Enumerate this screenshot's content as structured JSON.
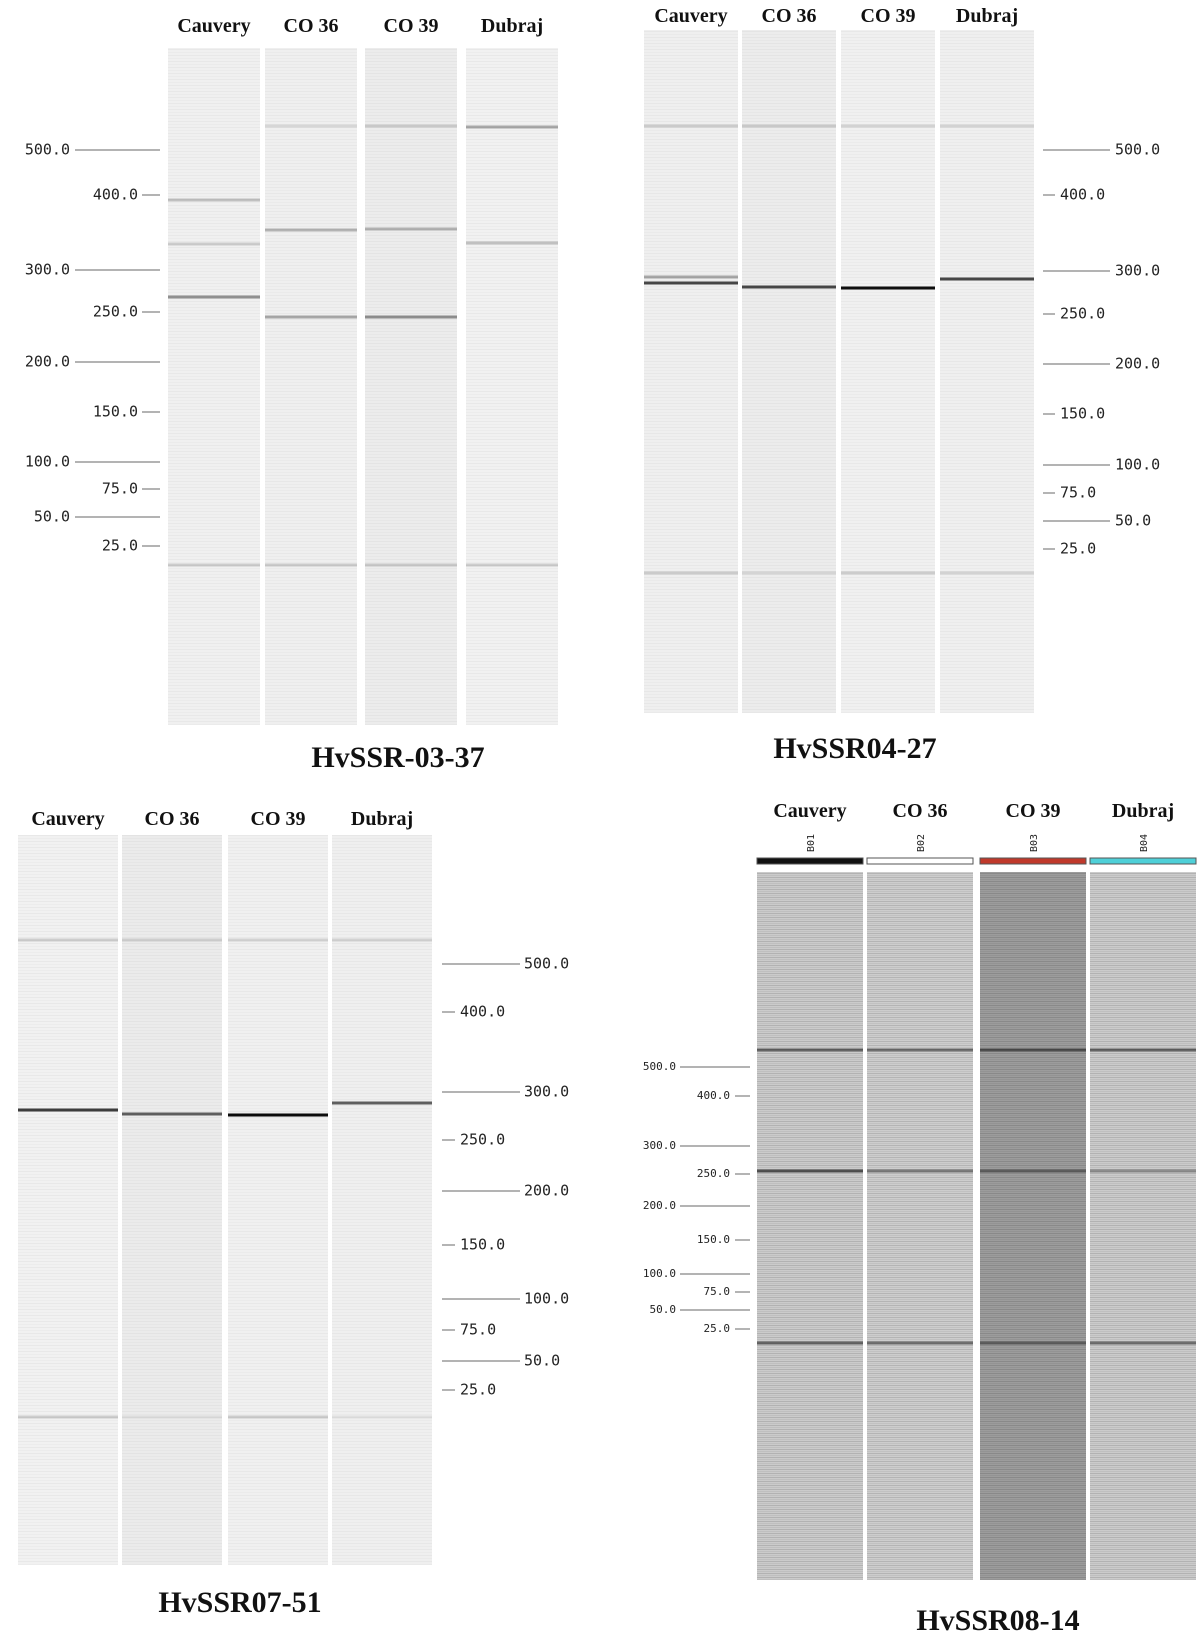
{
  "panels": [
    {
      "lanes": [
        "Cauvery",
        "CO 36",
        "CO 39",
        "Dubraj"
      ],
      "ladder": [
        "500.0",
        "400.0",
        "300.0",
        "250.0",
        "200.0",
        "150.0",
        "100.0",
        "75.0",
        "50.0",
        "25.0"
      ],
      "title": "HvSSR-03-37"
    },
    {
      "lanes": [
        "Cauvery",
        "CO 36",
        "CO 39",
        "Dubraj"
      ],
      "ladder": [
        "500.0",
        "400.0",
        "300.0",
        "250.0",
        "200.0",
        "150.0",
        "100.0",
        "75.0",
        "50.0",
        "25.0"
      ],
      "title": "HvSSR04-27"
    },
    {
      "lanes": [
        "Cauvery",
        "CO 36",
        "CO 39",
        "Dubraj"
      ],
      "ladder": [
        "500.0",
        "400.0",
        "300.0",
        "250.0",
        "200.0",
        "150.0",
        "100.0",
        "75.0",
        "50.0",
        "25.0"
      ],
      "title": "HvSSR07-51"
    },
    {
      "lanes": [
        "Cauvery",
        "CO 36",
        "CO 39",
        "Dubraj"
      ],
      "lane_ids": [
        "B01",
        "B02",
        "B03",
        "B04"
      ],
      "ladder": [
        "500.0",
        "400.0",
        "300.0",
        "250.0",
        "200.0",
        "150.0",
        "100.0",
        "75.0",
        "50.0",
        "25.0"
      ],
      "title": "HvSSR08-14"
    }
  ]
}
